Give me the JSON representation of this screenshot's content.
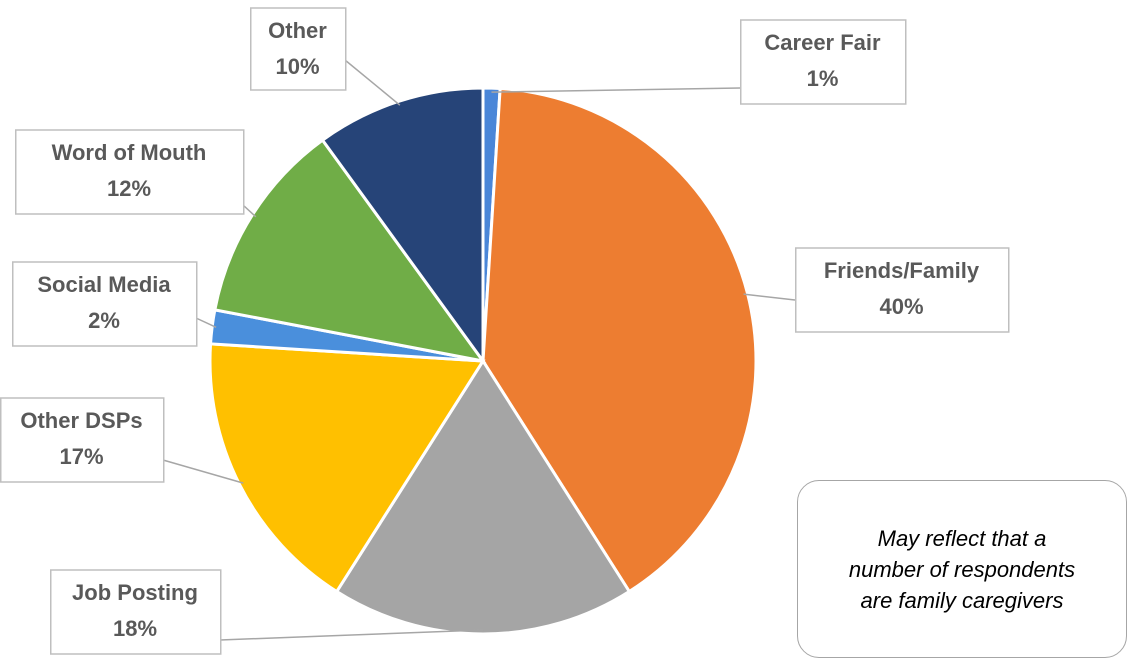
{
  "chart_data": {
    "type": "pie",
    "categories": [
      "Career Fair",
      "Friends/Family",
      "Job Posting",
      "Other DSPs",
      "Social Media",
      "Word of Mouth",
      "Other"
    ],
    "values": [
      1,
      40,
      18,
      17,
      2,
      12,
      10
    ],
    "value_labels": [
      "1%",
      "40%",
      "18%",
      "17%",
      "2%",
      "12%",
      "10%"
    ],
    "colors": [
      "#4a86d8",
      "#ed7d31",
      "#a5a5a5",
      "#ffc000",
      "#4a8fdc",
      "#70ad47",
      "#264478"
    ],
    "annotation": "May reflect that a number of respondents are family caregivers"
  }
}
